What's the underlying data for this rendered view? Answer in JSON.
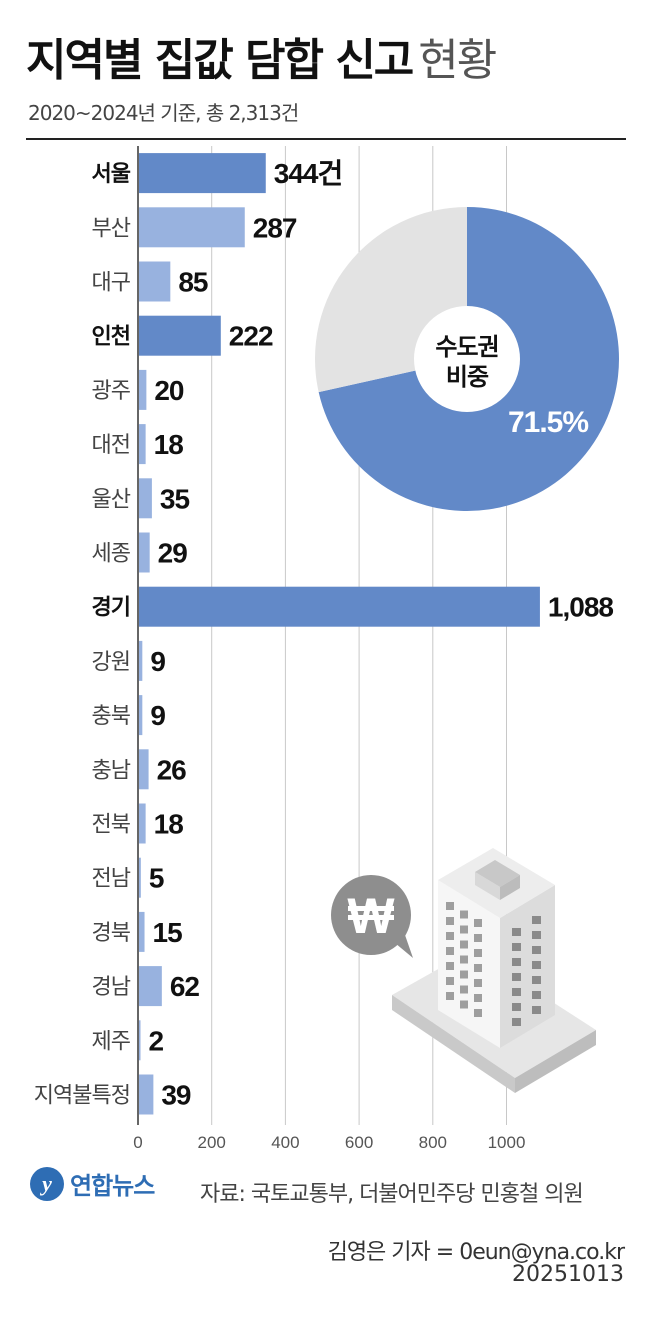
{
  "header": {
    "title_bold": "지역별 집값 담합 신고",
    "title_light": "현황",
    "subtitle": "2020~2024년 기준, 총 2,313건"
  },
  "chart_data": [
    {
      "type": "bar",
      "orientation": "horizontal",
      "categories": [
        "서울",
        "부산",
        "대구",
        "인천",
        "광주",
        "대전",
        "울산",
        "세종",
        "경기",
        "강원",
        "충북",
        "충남",
        "전북",
        "전남",
        "경북",
        "경남",
        "제주",
        "지역불특정"
      ],
      "values": [
        344,
        287,
        85,
        222,
        20,
        18,
        35,
        29,
        1088,
        9,
        9,
        26,
        18,
        5,
        15,
        62,
        2,
        39
      ],
      "value_labels": [
        "344건",
        "287",
        "85",
        "222",
        "20",
        "18",
        "35",
        "29",
        "1,088",
        "9",
        "9",
        "26",
        "18",
        "5",
        "15",
        "62",
        "2",
        "39"
      ],
      "highlighted": [
        "서울",
        "인천",
        "경기"
      ],
      "bold_categories": [
        "서울",
        "인천",
        "경기"
      ],
      "xlim": [
        0,
        1100
      ],
      "xticks": [
        0,
        200,
        400,
        600,
        800,
        1000
      ],
      "xtick_labels": [
        "0",
        "200",
        "400",
        "600",
        "800",
        "1000"
      ],
      "grid": true,
      "colors": {
        "highlight": "#6289c8",
        "normal": "#98b2df",
        "grid": "#c8c8c8"
      }
    },
    {
      "type": "pie",
      "style": "donut",
      "center_label": "수도권 비중",
      "center_label_lines": [
        "수도권",
        "비중"
      ],
      "slices": [
        {
          "label": "수도권",
          "value": 71.5,
          "display": "71.5%",
          "color": "#6289c8"
        },
        {
          "label": "",
          "value": 28.5,
          "color": "#e3e3e3"
        }
      ]
    }
  ],
  "illustration": {
    "icons": [
      "won-speech-bubble-icon",
      "apartment-building-icon"
    ]
  },
  "footer": {
    "logo_text": "연합뉴스",
    "source": "자료: 국토교통부, 더불어민주당 민홍철 의원",
    "credit": "김영은 기자 = 0eun@yna.co.kr",
    "date": "20251013"
  }
}
